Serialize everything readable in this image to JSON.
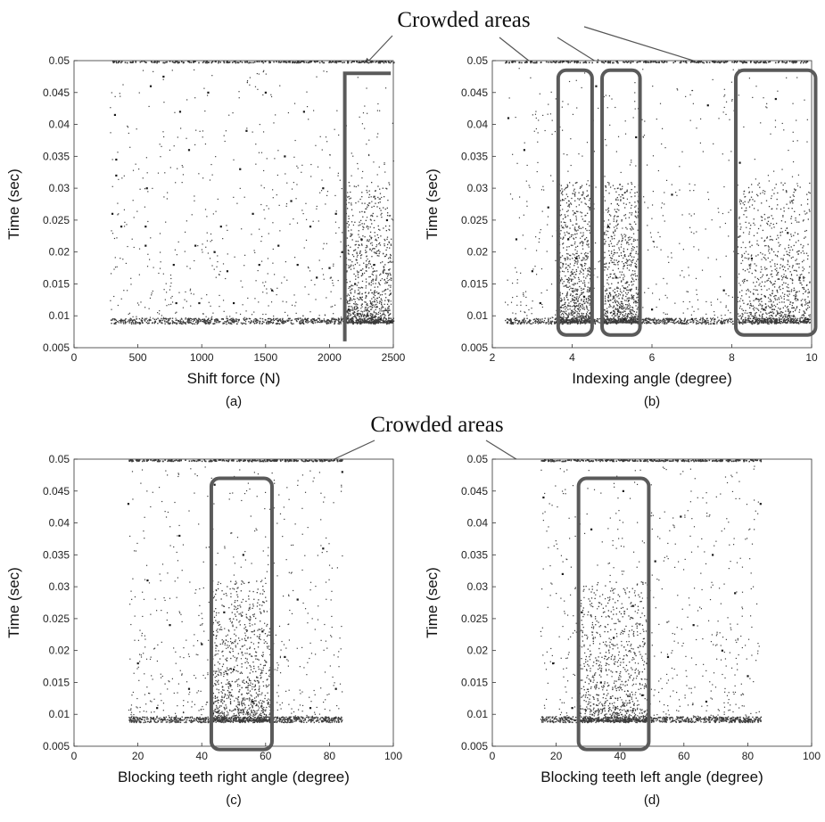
{
  "annotations": [
    "Crowded areas",
    "Crowded areas"
  ],
  "colors": {
    "points": "#1a1a1a",
    "highlight": "#5a5a5a",
    "axes": "#333333"
  },
  "chart_data": [
    {
      "type": "scatter",
      "caption": "(a)",
      "xlabel": "Shift force (N)",
      "ylabel": "Time (sec)",
      "xlim": [
        0,
        2500
      ],
      "ylim": [
        0.005,
        0.05
      ],
      "xticks": [
        "0",
        "500",
        "1000",
        "1500",
        "2000",
        "2500"
      ],
      "yticks": [
        "0.005",
        "0.01",
        "0.015",
        "0.02",
        "0.025",
        "0.03",
        "0.035",
        "0.04",
        "0.045",
        "0.05"
      ],
      "points": [
        [
          300,
          0.026
        ],
        [
          320,
          0.0415
        ],
        [
          330,
          0.0345
        ],
        [
          330,
          0.032
        ],
        [
          370,
          0.024
        ],
        [
          560,
          0.021
        ],
        [
          560,
          0.024
        ],
        [
          570,
          0.03
        ],
        [
          600,
          0.046
        ],
        [
          700,
          0.0475
        ],
        [
          780,
          0.018
        ],
        [
          800,
          0.012
        ],
        [
          830,
          0.042
        ],
        [
          900,
          0.036
        ],
        [
          950,
          0.021
        ],
        [
          980,
          0.012
        ],
        [
          1050,
          0.045
        ],
        [
          1100,
          0.02
        ],
        [
          1150,
          0.024
        ],
        [
          1200,
          0.017
        ],
        [
          1250,
          0.012
        ],
        [
          1300,
          0.033
        ],
        [
          1350,
          0.039
        ],
        [
          1400,
          0.026
        ],
        [
          1450,
          0.018
        ],
        [
          1500,
          0.045
        ],
        [
          1550,
          0.014
        ],
        [
          1600,
          0.021
        ],
        [
          1650,
          0.035
        ],
        [
          1700,
          0.028
        ],
        [
          1750,
          0.018
        ],
        [
          1800,
          0.042
        ],
        [
          1850,
          0.024
        ],
        [
          1900,
          0.016
        ],
        [
          1950,
          0.03
        ],
        [
          2000,
          0.0175
        ],
        [
          2050,
          0.026
        ],
        [
          2100,
          0.02
        ],
        [
          2150,
          0.011
        ],
        [
          2200,
          0.015
        ],
        [
          2250,
          0.022
        ],
        [
          2300,
          0.01
        ],
        [
          2350,
          0.018
        ],
        [
          2400,
          0.0095
        ],
        [
          2450,
          0.025
        ],
        [
          2480,
          0.009
        ]
      ],
      "highlights": [
        {
          "shape": "bracket",
          "x": [
            2120,
            2480
          ],
          "y": [
            0.006,
            0.048
          ]
        }
      ]
    },
    {
      "type": "scatter",
      "caption": "(b)",
      "xlabel": "Indexing angle (degree)",
      "ylabel": "Time (sec)",
      "xlim": [
        2,
        10
      ],
      "ylim": [
        0.005,
        0.05
      ],
      "xticks": [
        "2",
        "4",
        "6",
        "8",
        "10"
      ],
      "yticks": [
        "0.005",
        "0.01",
        "0.015",
        "0.02",
        "0.025",
        "0.03",
        "0.035",
        "0.04",
        "0.045",
        "0.05"
      ],
      "points": [
        [
          2.4,
          0.041
        ],
        [
          2.6,
          0.022
        ],
        [
          2.8,
          0.036
        ],
        [
          3.0,
          0.017
        ],
        [
          3.2,
          0.012
        ],
        [
          3.4,
          0.027
        ],
        [
          3.6,
          0.009
        ],
        [
          3.9,
          0.022
        ],
        [
          4.1,
          0.019
        ],
        [
          4.3,
          0.013
        ],
        [
          4.6,
          0.046
        ],
        [
          4.9,
          0.024
        ],
        [
          5.1,
          0.016
        ],
        [
          5.3,
          0.0095
        ],
        [
          5.6,
          0.038
        ],
        [
          6.0,
          0.011
        ],
        [
          6.5,
          0.029
        ],
        [
          7.0,
          0.0095
        ],
        [
          7.4,
          0.043
        ],
        [
          7.8,
          0.014
        ],
        [
          8.2,
          0.034
        ],
        [
          8.5,
          0.019
        ],
        [
          8.8,
          0.011
        ],
        [
          9.1,
          0.044
        ],
        [
          9.4,
          0.023
        ],
        [
          9.7,
          0.016
        ],
        [
          9.9,
          0.0095
        ]
      ],
      "highlights": [
        {
          "shape": "box",
          "x": [
            3.65,
            4.5
          ],
          "y": [
            0.007,
            0.0485
          ]
        },
        {
          "shape": "box",
          "x": [
            4.75,
            5.7
          ],
          "y": [
            0.007,
            0.0485
          ]
        },
        {
          "shape": "box",
          "x": [
            8.1,
            10.1
          ],
          "y": [
            0.007,
            0.0485
          ]
        }
      ]
    },
    {
      "type": "scatter",
      "caption": "(c)",
      "xlabel": "Blocking teeth right angle (degree)",
      "ylabel": "Time (sec)",
      "xlim": [
        0,
        100
      ],
      "ylim": [
        0.005,
        0.05
      ],
      "xticks": [
        "0",
        "20",
        "40",
        "60",
        "80",
        "100"
      ],
      "yticks": [
        "0.005",
        "0.01",
        "0.015",
        "0.02",
        "0.025",
        "0.03",
        "0.035",
        "0.04",
        "0.045",
        "0.05"
      ],
      "points": [
        [
          17,
          0.043
        ],
        [
          20,
          0.018
        ],
        [
          23,
          0.031
        ],
        [
          26,
          0.011
        ],
        [
          30,
          0.024
        ],
        [
          33,
          0.038
        ],
        [
          36,
          0.014
        ],
        [
          40,
          0.021
        ],
        [
          44,
          0.046
        ],
        [
          47,
          0.026
        ],
        [
          50,
          0.017
        ],
        [
          53,
          0.035
        ],
        [
          56,
          0.012
        ],
        [
          59,
          0.023
        ],
        [
          62,
          0.041
        ],
        [
          66,
          0.019
        ],
        [
          70,
          0.028
        ],
        [
          74,
          0.011
        ],
        [
          78,
          0.036
        ],
        [
          82,
          0.014
        ],
        [
          84,
          0.048
        ]
      ],
      "highlights": [
        {
          "shape": "box",
          "x": [
            43,
            62
          ],
          "y": [
            0.0045,
            0.047
          ]
        }
      ]
    },
    {
      "type": "scatter",
      "caption": "(d)",
      "xlabel": "Blocking teeth left angle (degree)",
      "ylabel": "Time (sec)",
      "xlim": [
        0,
        100
      ],
      "ylim": [
        0.005,
        0.05
      ],
      "xticks": [
        "0",
        "20",
        "40",
        "60",
        "80",
        "100"
      ],
      "yticks": [
        "0.005",
        "0.01",
        "0.015",
        "0.02",
        "0.025",
        "0.03",
        "0.035",
        "0.04",
        "0.045",
        "0.05"
      ],
      "points": [
        [
          16,
          0.044
        ],
        [
          19,
          0.018
        ],
        [
          22,
          0.032
        ],
        [
          25,
          0.011
        ],
        [
          28,
          0.026
        ],
        [
          31,
          0.039
        ],
        [
          34,
          0.015
        ],
        [
          38,
          0.022
        ],
        [
          41,
          0.045
        ],
        [
          44,
          0.027
        ],
        [
          47,
          0.013
        ],
        [
          51,
          0.034
        ],
        [
          55,
          0.019
        ],
        [
          59,
          0.041
        ],
        [
          63,
          0.024
        ],
        [
          67,
          0.012
        ],
        [
          69,
          0.035
        ],
        [
          72,
          0.02
        ],
        [
          76,
          0.029
        ],
        [
          80,
          0.016
        ],
        [
          84,
          0.043
        ]
      ],
      "highlights": [
        {
          "shape": "box",
          "x": [
            27,
            49
          ],
          "y": [
            0.0045,
            0.047
          ]
        }
      ]
    }
  ]
}
